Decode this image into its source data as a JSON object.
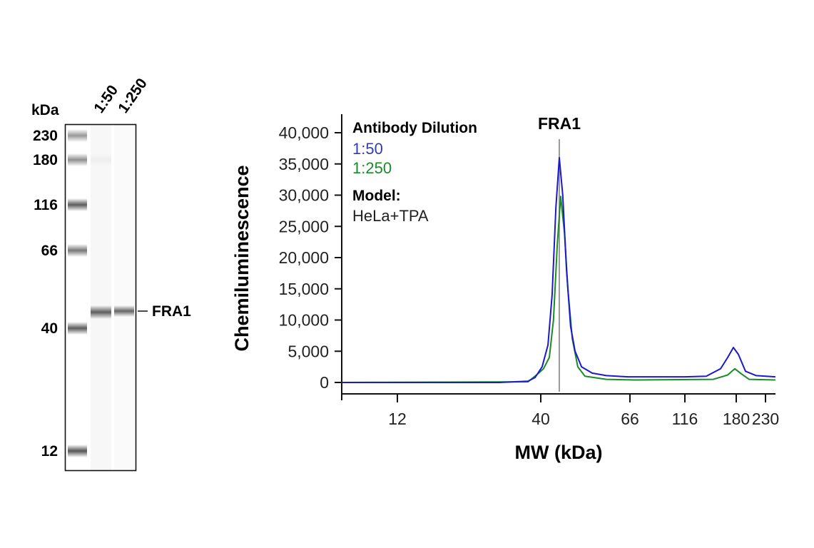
{
  "blot": {
    "unit_label": "kDa",
    "lane_labels": [
      "1:50",
      "1:250"
    ],
    "markers": [
      230,
      180,
      116,
      66,
      40,
      12
    ],
    "marker_labels": [
      "230",
      "180",
      "116",
      "66",
      "40",
      "12"
    ],
    "band_label": "FRA1",
    "band_kda": 45
  },
  "chart_data": {
    "type": "line",
    "title": "FRA1",
    "xlabel": "MW (kDa)",
    "ylabel": "Chemiluminescence",
    "x_ticks": [
      12,
      40,
      66,
      116,
      180,
      230
    ],
    "x_tick_labels": [
      "12",
      "40",
      "66",
      "116",
      "180",
      "230"
    ],
    "y_ticks": [
      0,
      5000,
      10000,
      15000,
      20000,
      25000,
      30000,
      35000,
      40000
    ],
    "y_tick_labels": [
      "0",
      "5,000",
      "10,000",
      "15,000",
      "20,000",
      "25,000",
      "30,000",
      "35,000",
      "40,000"
    ],
    "ylim": [
      0,
      40000
    ],
    "xlim": [
      1.1,
      247
    ],
    "grid": false,
    "marker_line_kda": 45.4,
    "legend": {
      "title": "Antibody Dilution",
      "placement": "top-left",
      "model_label": "Model:",
      "model_value": "HeLa+TPA"
    },
    "series": [
      {
        "name": "1:50",
        "color": "#1a1acc",
        "x": [
          1.1,
          31.9,
          37.5,
          38.9,
          40.4,
          42.1,
          43.3,
          44.4,
          45.4,
          46.4,
          47.5,
          48.7,
          50.0,
          51.9,
          55.0,
          59.1,
          65.4,
          84.7,
          116,
          142.7,
          160.4,
          169.3,
          176.4,
          183.7,
          195.9,
          214.2,
          247
        ],
        "y": [
          0,
          0,
          200,
          800,
          2500,
          6000,
          14000,
          28000,
          36000,
          30000,
          18000,
          9000,
          5000,
          2500,
          1500,
          1100,
          900,
          900,
          900,
          1000,
          2200,
          4000,
          5600,
          4500,
          1800,
          1100,
          900
        ]
      },
      {
        "name": "1:250",
        "color": "#1a8a2a",
        "x": [
          1.1,
          37.5,
          39.6,
          40.8,
          42.5,
          43.7,
          44.8,
          45.8,
          46.9,
          47.9,
          49.2,
          50.8,
          52.9,
          59.1,
          71.8,
          151.6,
          169.3,
          178.2,
          189.8,
          202,
          247
        ],
        "y": [
          0,
          100,
          1500,
          2200,
          4000,
          10000,
          22000,
          29800,
          24000,
          15000,
          7000,
          2500,
          1000,
          500,
          400,
          500,
          1200,
          2200,
          1300,
          500,
          400
        ]
      }
    ]
  }
}
